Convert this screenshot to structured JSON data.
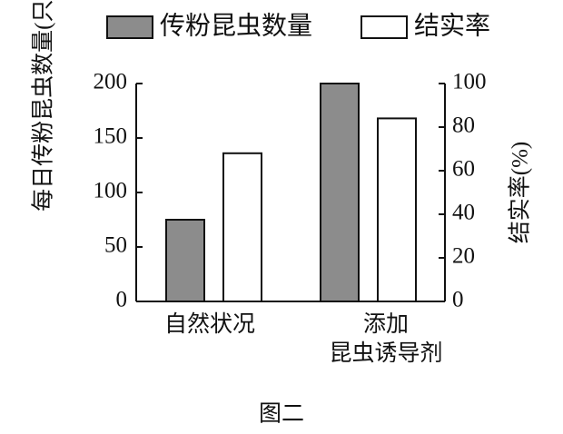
{
  "chart_data": {
    "type": "bar",
    "caption": "图二",
    "categories": [
      "自然状况",
      "添加\n昆虫诱导剂"
    ],
    "series": [
      {
        "name": "传粉昆虫数量",
        "color": "#8c8c8c",
        "values": [
          75,
          200
        ]
      },
      {
        "name": "结实率",
        "color": "#ffffff",
        "axis": "y2",
        "values": [
          68,
          84
        ]
      }
    ],
    "ylabel": "每日传粉昆虫数量(只)",
    "y2label": "结实率(%)",
    "ylim": [
      0,
      200
    ],
    "yticks": [
      0,
      50,
      100,
      150,
      200
    ],
    "y2lim": [
      0,
      100
    ],
    "y2ticks": [
      0,
      20,
      40,
      60,
      80,
      100
    ],
    "legend": "top"
  }
}
